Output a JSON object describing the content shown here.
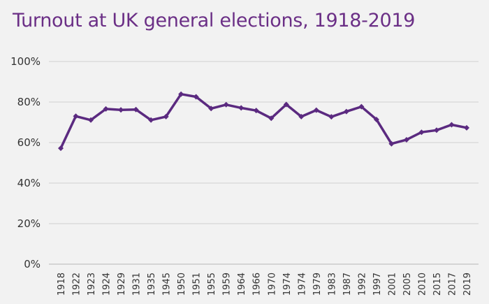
{
  "chart_data": {
    "type": "line",
    "title": "Turnout at UK general elections, 1918-2019",
    "xlabel": "",
    "ylabel": "",
    "ylim": [
      0,
      100
    ],
    "yticks": [
      "0%",
      "20%",
      "40%",
      "60%",
      "80%",
      "100%"
    ],
    "grid": true,
    "colors": {
      "line": "#5b2a80",
      "title": "#6b2f86",
      "grid": "#d0d0d0",
      "background": "#f2f2f2"
    },
    "categories": [
      "1918",
      "1922",
      "1923",
      "1924",
      "1929",
      "1931",
      "1935",
      "1945",
      "1950",
      "1951",
      "1955",
      "1959",
      "1964",
      "1966",
      "1970",
      "1974",
      "1974",
      "1979",
      "1983",
      "1987",
      "1992",
      "1997",
      "2001",
      "2005",
      "2010",
      "2015",
      "2017",
      "2019"
    ],
    "series": [
      {
        "name": "Turnout",
        "values": [
          57.2,
          73.0,
          71.1,
          76.6,
          76.1,
          76.3,
          71.1,
          72.8,
          83.9,
          82.6,
          76.8,
          78.7,
          77.1,
          75.8,
          72.0,
          78.8,
          72.8,
          76.0,
          72.7,
          75.3,
          77.7,
          71.4,
          59.4,
          61.4,
          65.1,
          66.1,
          68.8,
          67.3
        ]
      }
    ]
  }
}
